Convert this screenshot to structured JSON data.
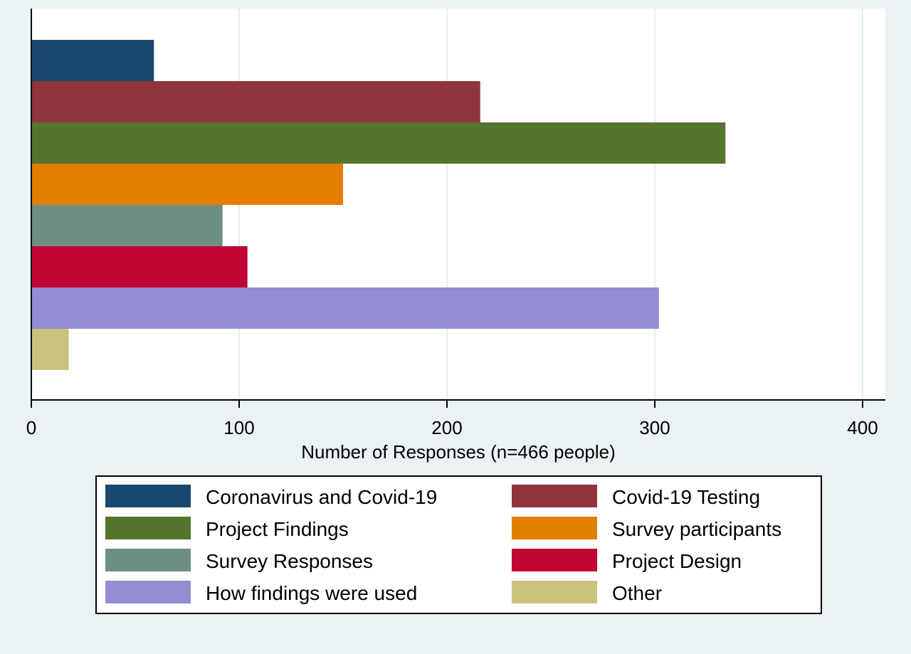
{
  "chart_data": {
    "type": "bar",
    "orientation": "horizontal",
    "xlabel": "Number of Responses (n=466 people)",
    "xlim": [
      0,
      410
    ],
    "xticks": [
      0,
      100,
      200,
      300,
      400
    ],
    "grid": true,
    "legend_position": "bottom",
    "series": [
      {
        "name": "Coronavirus and Covid-19",
        "value": 59,
        "color": "#1a476f"
      },
      {
        "name": "Covid-19 Testing",
        "value": 216,
        "color": "#90353b"
      },
      {
        "name": "Project Findings",
        "value": 334,
        "color": "#55752f"
      },
      {
        "name": "Survey participants",
        "value": 150,
        "color": "#e37e00"
      },
      {
        "name": "Survey Responses",
        "value": 92,
        "color": "#6e8e84"
      },
      {
        "name": "Project Design",
        "value": 104,
        "color": "#c10534"
      },
      {
        "name": "How findings were used",
        "value": 302,
        "color": "#938dd2"
      },
      {
        "name": "Other",
        "value": 18,
        "color": "#cac27e"
      }
    ]
  }
}
